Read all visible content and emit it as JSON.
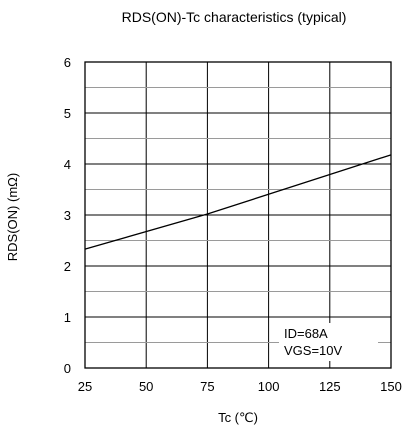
{
  "chart_data": {
    "type": "line",
    "title": "RDS(ON)-Tc characteristics (typical)",
    "xlabel": "Tc (℃)",
    "ylabel": "RDS(ON) (mΩ)",
    "xlim": [
      25,
      150
    ],
    "ylim": [
      0,
      6
    ],
    "x_ticks": [
      "25",
      "50",
      "75",
      "100",
      "125",
      "150"
    ],
    "y_ticks": [
      "0",
      "1",
      "2",
      "3",
      "4",
      "5",
      "6"
    ],
    "grid": true,
    "series": [
      {
        "x": [
          25,
          75,
          150
        ],
        "y": [
          2.33,
          3.02,
          4.18
        ]
      }
    ],
    "annotations": [
      "ID=68A",
      "VGS=10V"
    ]
  }
}
